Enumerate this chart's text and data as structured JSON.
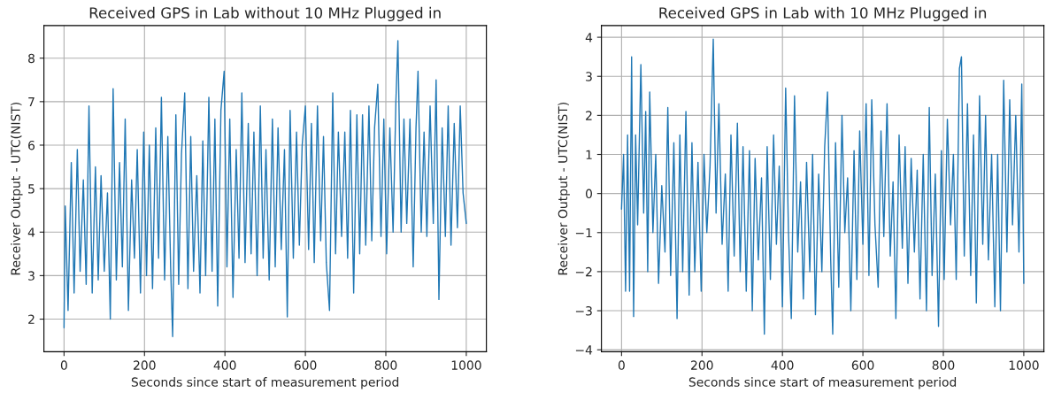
{
  "chart_data": [
    {
      "type": "line",
      "title": "Received GPS in Lab without 10 MHz Plugged in",
      "xlabel": "Seconds since start of measurement period",
      "ylabel": "Receiver Output - UTC(NIST)",
      "xlim": [
        -50,
        1050
      ],
      "ylim": [
        1.25,
        8.75
      ],
      "xticks": [
        0,
        200,
        400,
        600,
        800,
        1000
      ],
      "yticks": [
        2,
        3,
        4,
        5,
        6,
        7,
        8
      ],
      "grid": true,
      "series": [
        {
          "color": "#1f77b4",
          "x": [
            0,
            3,
            10,
            18,
            25,
            33,
            40,
            48,
            55,
            62,
            70,
            78,
            85,
            92,
            100,
            108,
            115,
            122,
            130,
            138,
            145,
            152,
            160,
            168,
            175,
            182,
            190,
            198,
            205,
            212,
            220,
            228,
            235,
            242,
            250,
            258,
            265,
            270,
            278,
            285,
            292,
            300,
            308,
            315,
            322,
            330,
            338,
            345,
            352,
            360,
            368,
            375,
            382,
            390,
            398,
            405,
            412,
            420,
            428,
            435,
            442,
            450,
            458,
            465,
            472,
            480,
            488,
            495,
            502,
            510,
            518,
            525,
            532,
            540,
            548,
            555,
            562,
            570,
            578,
            585,
            592,
            600,
            608,
            615,
            622,
            630,
            638,
            645,
            652,
            660,
            668,
            675,
            682,
            690,
            698,
            705,
            712,
            720,
            728,
            735,
            742,
            750,
            758,
            765,
            772,
            780,
            788,
            795,
            802,
            810,
            818,
            825,
            830,
            838,
            845,
            852,
            860,
            868,
            875,
            880,
            888,
            895,
            902,
            910,
            918,
            925,
            932,
            940,
            948,
            955,
            962,
            970,
            978,
            985,
            992,
            1000
          ],
          "values": [
            1.8,
            4.6,
            2.2,
            5.6,
            2.6,
            5.9,
            3.1,
            5.2,
            2.8,
            6.9,
            2.6,
            5.5,
            2.9,
            5.3,
            3.1,
            4.9,
            2.0,
            7.3,
            2.9,
            5.6,
            3.2,
            6.6,
            2.2,
            5.2,
            3.4,
            5.9,
            2.6,
            6.3,
            3.0,
            6.0,
            2.7,
            6.4,
            3.4,
            7.1,
            2.9,
            6.2,
            3.2,
            1.6,
            6.7,
            2.8,
            5.8,
            7.2,
            2.7,
            6.2,
            3.1,
            5.3,
            2.6,
            6.1,
            3.0,
            7.1,
            3.1,
            6.6,
            2.3,
            6.8,
            7.7,
            3.2,
            6.6,
            2.5,
            5.9,
            3.4,
            7.2,
            3.3,
            6.5,
            3.5,
            6.3,
            3.0,
            6.9,
            3.4,
            5.9,
            2.9,
            6.6,
            3.2,
            6.4,
            3.6,
            5.9,
            2.05,
            6.8,
            3.4,
            6.3,
            3.7,
            6.0,
            6.9,
            3.6,
            6.5,
            3.3,
            6.9,
            3.8,
            6.2,
            3.3,
            2.2,
            7.2,
            3.5,
            6.3,
            3.9,
            6.3,
            3.4,
            6.8,
            2.6,
            6.7,
            3.5,
            6.7,
            3.7,
            6.9,
            3.8,
            6.4,
            7.4,
            3.9,
            6.6,
            3.5,
            6.4,
            4.0,
            7.0,
            8.4,
            4.0,
            6.6,
            4.2,
            6.6,
            3.2,
            6.4,
            7.7,
            4.0,
            6.3,
            3.9,
            6.9,
            4.2,
            7.5,
            2.45,
            6.4,
            3.9,
            6.9,
            3.7,
            6.5,
            4.1,
            6.9,
            4.9,
            4.2
          ]
        }
      ]
    },
    {
      "type": "line",
      "title": "Received GPS in Lab with 10 MHz Plugged in",
      "xlabel": "Seconds since start of measurement period",
      "ylabel": "Receiver Output - UTC(NIST)",
      "xlim": [
        -50,
        1050
      ],
      "ylim": [
        -4.05,
        4.3
      ],
      "xticks": [
        0,
        200,
        400,
        600,
        800,
        1000
      ],
      "yticks": [
        {
          "value": -4,
          "label": "−4"
        },
        {
          "value": -3,
          "label": "−3"
        },
        {
          "value": -2,
          "label": "−2"
        },
        {
          "value": -1,
          "label": "−1"
        },
        0,
        1,
        2,
        3,
        4
      ],
      "grid": true,
      "series": [
        {
          "color": "#1f77b4",
          "x": [
            0,
            5,
            10,
            15,
            20,
            25,
            30,
            35,
            40,
            48,
            55,
            60,
            65,
            70,
            78,
            85,
            92,
            100,
            108,
            115,
            122,
            130,
            138,
            145,
            152,
            160,
            168,
            175,
            182,
            190,
            198,
            205,
            212,
            220,
            228,
            235,
            242,
            250,
            258,
            265,
            272,
            280,
            288,
            295,
            302,
            310,
            318,
            325,
            332,
            340,
            348,
            355,
            362,
            370,
            378,
            385,
            392,
            400,
            408,
            415,
            422,
            430,
            438,
            445,
            452,
            460,
            468,
            475,
            482,
            490,
            498,
            505,
            512,
            520,
            525,
            532,
            540,
            548,
            555,
            562,
            570,
            578,
            585,
            592,
            600,
            608,
            615,
            622,
            630,
            638,
            645,
            652,
            660,
            668,
            675,
            682,
            690,
            698,
            705,
            712,
            720,
            728,
            735,
            742,
            750,
            758,
            765,
            772,
            780,
            788,
            795,
            802,
            810,
            818,
            825,
            832,
            840,
            845,
            852,
            860,
            868,
            875,
            882,
            890,
            898,
            905,
            912,
            920,
            928,
            935,
            942,
            950,
            958,
            965,
            972,
            980,
            988,
            995,
            1000
          ],
          "values": [
            -0.4,
            1.0,
            -2.5,
            1.5,
            -2.5,
            3.5,
            -3.15,
            1.5,
            -0.8,
            3.3,
            -0.5,
            2.1,
            -2.0,
            2.6,
            -1.0,
            1.0,
            -2.3,
            0.2,
            -1.5,
            2.2,
            -2.1,
            1.3,
            -3.2,
            1.5,
            -2.0,
            2.1,
            -2.6,
            1.3,
            -2.0,
            0.8,
            -2.5,
            1.0,
            -1.0,
            0.7,
            3.95,
            -0.5,
            2.3,
            -1.3,
            0.5,
            -2.5,
            1.5,
            -1.6,
            1.8,
            -2.0,
            1.2,
            -2.5,
            1.1,
            -3.0,
            0.9,
            -1.7,
            0.4,
            -3.6,
            1.2,
            -2.2,
            1.5,
            -1.3,
            0.7,
            -2.9,
            2.7,
            -1.0,
            -3.2,
            2.5,
            -1.5,
            0.3,
            -2.7,
            0.8,
            -2.0,
            1.0,
            -3.1,
            0.5,
            -2.0,
            1.2,
            2.6,
            -1.7,
            -3.6,
            1.3,
            -2.4,
            2.0,
            -1.0,
            0.4,
            -3.0,
            1.1,
            -2.2,
            1.6,
            -1.3,
            2.3,
            -2.1,
            2.4,
            -0.8,
            -2.4,
            1.6,
            -1.1,
            2.3,
            -1.6,
            0.3,
            -3.2,
            1.5,
            -1.4,
            1.2,
            -2.3,
            0.9,
            -1.5,
            0.6,
            -2.7,
            1.0,
            -3.0,
            2.2,
            -2.1,
            0.5,
            -3.4,
            1.1,
            -2.2,
            1.9,
            -0.8,
            1.0,
            -2.2,
            3.2,
            3.5,
            -1.6,
            2.3,
            -2.1,
            1.5,
            -2.8,
            2.5,
            -1.3,
            2.0,
            -1.7,
            1.0,
            -2.9,
            1.0,
            -3.0,
            2.9,
            -1.5,
            2.4,
            -0.8,
            2.0,
            -1.5,
            2.8,
            -2.3
          ]
        }
      ]
    }
  ]
}
